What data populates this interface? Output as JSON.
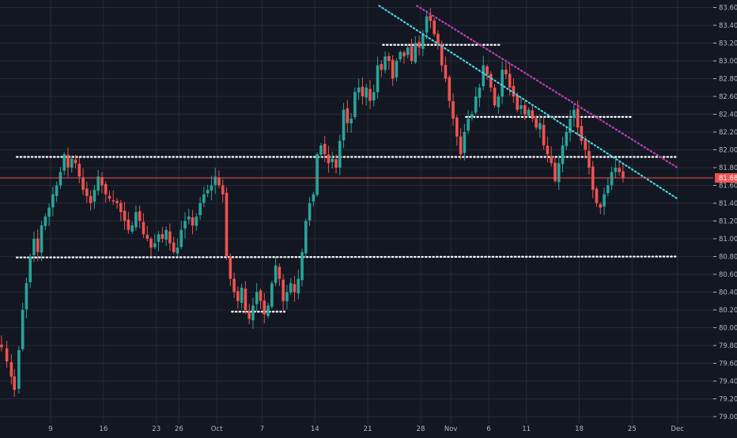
{
  "colors": {
    "background": "#131722",
    "grid": "#252a37",
    "up": "#26a69a",
    "down": "#ef5350",
    "axis_text": "#b2b5be",
    "support_line": "#ffffff",
    "trend_cyan": "#4dd0e1",
    "trend_magenta": "#ba3fb8",
    "price_line": "#ef5350",
    "price_label_bg": "#ef5350"
  },
  "chart_data": {
    "type": "candlestick",
    "ylim": [
      79.0,
      83.7
    ],
    "y_ticks": [
      "79.000",
      "79.200",
      "79.400",
      "79.600",
      "79.800",
      "80.000",
      "80.200",
      "80.400",
      "80.600",
      "80.800",
      "81.000",
      "81.200",
      "81.400",
      "81.600",
      "81.800",
      "82.000",
      "82.200",
      "82.400",
      "82.600",
      "82.800",
      "83.000",
      "83.200",
      "83.400",
      "83.600"
    ],
    "x_ticks": [
      {
        "label": "9",
        "day": 9
      },
      {
        "label": "16",
        "day": 16
      },
      {
        "label": "23",
        "day": 23
      },
      {
        "label": "26",
        "day": 26
      },
      {
        "label": "Oct",
        "day": 31
      },
      {
        "label": "7",
        "day": 37
      },
      {
        "label": "14",
        "day": 44
      },
      {
        "label": "21",
        "day": 51
      },
      {
        "label": "28",
        "day": 58
      },
      {
        "label": "Nov",
        "day": 62
      },
      {
        "label": "6",
        "day": 67
      },
      {
        "label": "11",
        "day": 72
      },
      {
        "label": "18",
        "day": 79
      },
      {
        "label": "25",
        "day": 86
      },
      {
        "label": "Dec",
        "day": 92
      }
    ],
    "x_range": [
      2.5,
      92
    ],
    "last_price": {
      "value": 81.684,
      "label": "81.684"
    },
    "horizontal_levels": [
      {
        "from_day": 4.5,
        "to_day": 92,
        "y": 81.92
      },
      {
        "from_day": 4.5,
        "to_day": 92,
        "y": 80.79,
        "y_end": 80.8
      },
      {
        "from_day": 33,
        "to_day": 40,
        "y": 80.18
      },
      {
        "from_day": 53,
        "to_day": 68.5,
        "y": 83.18
      },
      {
        "from_day": 64,
        "to_day": 86,
        "y": 82.37
      }
    ],
    "trendlines": [
      {
        "color_key": "trend_cyan",
        "from": [
          52.5,
          83.62
        ],
        "to": [
          92,
          81.45
        ]
      },
      {
        "color_key": "trend_magenta",
        "from": [
          57.5,
          83.62
        ],
        "to": [
          92,
          81.8
        ]
      }
    ],
    "close_path": [
      [
        2.5,
        79.78
      ],
      [
        3.2,
        79.62
      ],
      [
        3.8,
        79.45
      ],
      [
        4.2,
        79.3
      ],
      [
        4.8,
        79.75
      ],
      [
        5.3,
        80.2
      ],
      [
        5.8,
        80.5
      ],
      [
        6.3,
        80.8
      ],
      [
        6.8,
        81.0
      ],
      [
        7.3,
        80.85
      ],
      [
        7.8,
        81.15
      ],
      [
        8.3,
        81.25
      ],
      [
        8.8,
        81.35
      ],
      [
        9.3,
        81.5
      ],
      [
        9.8,
        81.6
      ],
      [
        10.3,
        81.75
      ],
      [
        10.8,
        81.95
      ],
      [
        11.3,
        81.8
      ],
      [
        11.8,
        81.9
      ],
      [
        12.3,
        81.85
      ],
      [
        12.8,
        81.7
      ],
      [
        13.3,
        81.55
      ],
      [
        13.8,
        81.48
      ],
      [
        14.3,
        81.4
      ],
      [
        14.8,
        81.55
      ],
      [
        15.3,
        81.7
      ],
      [
        15.8,
        81.6
      ],
      [
        16.3,
        81.5
      ],
      [
        16.8,
        81.45
      ],
      [
        17.3,
        81.42
      ],
      [
        17.8,
        81.4
      ],
      [
        18.3,
        81.3
      ],
      [
        18.8,
        81.2
      ],
      [
        19.3,
        81.1
      ],
      [
        19.8,
        81.15
      ],
      [
        20.3,
        81.3
      ],
      [
        20.8,
        81.2
      ],
      [
        21.3,
        81.05
      ],
      [
        21.8,
        81.0
      ],
      [
        22.3,
        80.9
      ],
      [
        22.8,
        80.95
      ],
      [
        23.3,
        81.05
      ],
      [
        23.8,
        81.0
      ],
      [
        24.3,
        81.1
      ],
      [
        24.8,
        80.95
      ],
      [
        25.3,
        80.85
      ],
      [
        25.8,
        80.9
      ],
      [
        26.3,
        81.1
      ],
      [
        26.8,
        81.2
      ],
      [
        27.3,
        81.25
      ],
      [
        27.8,
        81.15
      ],
      [
        28.3,
        81.25
      ],
      [
        28.8,
        81.4
      ],
      [
        29.3,
        81.5
      ],
      [
        29.8,
        81.55
      ],
      [
        30.3,
        81.6
      ],
      [
        30.8,
        81.7
      ],
      [
        31.3,
        81.6
      ],
      [
        31.8,
        81.5
      ],
      [
        32.3,
        80.8
      ],
      [
        32.8,
        80.55
      ],
      [
        33.3,
        80.4
      ],
      [
        33.8,
        80.3
      ],
      [
        34.3,
        80.45
      ],
      [
        34.8,
        80.2
      ],
      [
        35.3,
        80.1
      ],
      [
        35.8,
        80.25
      ],
      [
        36.3,
        80.4
      ],
      [
        36.8,
        80.3
      ],
      [
        37.3,
        80.15
      ],
      [
        37.8,
        80.25
      ],
      [
        38.3,
        80.5
      ],
      [
        38.8,
        80.7
      ],
      [
        39.3,
        80.55
      ],
      [
        39.8,
        80.3
      ],
      [
        40.3,
        80.4
      ],
      [
        40.8,
        80.5
      ],
      [
        41.3,
        80.4
      ],
      [
        41.8,
        80.55
      ],
      [
        42.3,
        80.85
      ],
      [
        42.8,
        81.2
      ],
      [
        43.3,
        81.4
      ],
      [
        43.8,
        81.5
      ],
      [
        44.3,
        81.95
      ],
      [
        44.8,
        82.05
      ],
      [
        45.3,
        81.95
      ],
      [
        45.8,
        81.85
      ],
      [
        46.3,
        81.9
      ],
      [
        46.8,
        81.8
      ],
      [
        47.3,
        82.1
      ],
      [
        47.8,
        82.45
      ],
      [
        48.3,
        82.3
      ],
      [
        48.8,
        82.35
      ],
      [
        49.3,
        82.65
      ],
      [
        49.8,
        82.7
      ],
      [
        50.3,
        82.6
      ],
      [
        50.8,
        82.7
      ],
      [
        51.3,
        82.55
      ],
      [
        51.8,
        82.65
      ],
      [
        52.3,
        82.95
      ],
      [
        52.8,
        82.9
      ],
      [
        53.3,
        83.05
      ],
      [
        53.8,
        83.0
      ],
      [
        54.3,
        82.8
      ],
      [
        54.8,
        83.0
      ],
      [
        55.3,
        83.1
      ],
      [
        55.8,
        83.05
      ],
      [
        56.3,
        83.15
      ],
      [
        56.8,
        83.0
      ],
      [
        57.3,
        83.2
      ],
      [
        57.8,
        83.15
      ],
      [
        58.3,
        83.3
      ],
      [
        58.8,
        83.5
      ],
      [
        59.3,
        83.45
      ],
      [
        59.8,
        83.3
      ],
      [
        60.3,
        83.2
      ],
      [
        60.8,
        82.95
      ],
      [
        61.3,
        82.8
      ],
      [
        61.8,
        82.55
      ],
      [
        62.3,
        82.35
      ],
      [
        62.8,
        82.15
      ],
      [
        63.3,
        81.95
      ],
      [
        63.8,
        82.2
      ],
      [
        64.3,
        82.35
      ],
      [
        64.8,
        82.4
      ],
      [
        65.3,
        82.6
      ],
      [
        65.8,
        82.7
      ],
      [
        66.3,
        82.95
      ],
      [
        66.8,
        82.85
      ],
      [
        67.3,
        82.7
      ],
      [
        67.8,
        82.5
      ],
      [
        68.3,
        82.6
      ],
      [
        68.8,
        82.9
      ],
      [
        69.3,
        82.85
      ],
      [
        69.8,
        82.7
      ],
      [
        70.3,
        82.6
      ],
      [
        70.8,
        82.45
      ],
      [
        71.3,
        82.5
      ],
      [
        71.8,
        82.4
      ],
      [
        72.3,
        82.45
      ],
      [
        72.8,
        82.35
      ],
      [
        73.3,
        82.25
      ],
      [
        73.8,
        82.3
      ],
      [
        74.3,
        82.05
      ],
      [
        74.8,
        81.95
      ],
      [
        75.3,
        81.85
      ],
      [
        75.8,
        81.65
      ],
      [
        76.3,
        81.85
      ],
      [
        76.8,
        82.05
      ],
      [
        77.3,
        82.2
      ],
      [
        77.8,
        82.35
      ],
      [
        78.3,
        82.45
      ],
      [
        78.8,
        82.25
      ],
      [
        79.3,
        82.1
      ],
      [
        79.8,
        82.0
      ],
      [
        80.3,
        81.8
      ],
      [
        80.8,
        81.55
      ],
      [
        81.3,
        81.4
      ],
      [
        81.8,
        81.35
      ],
      [
        82.3,
        81.5
      ],
      [
        82.8,
        81.6
      ],
      [
        83.3,
        81.75
      ],
      [
        83.8,
        81.8
      ],
      [
        84.3,
        81.75
      ],
      [
        84.8,
        81.68
      ]
    ]
  }
}
